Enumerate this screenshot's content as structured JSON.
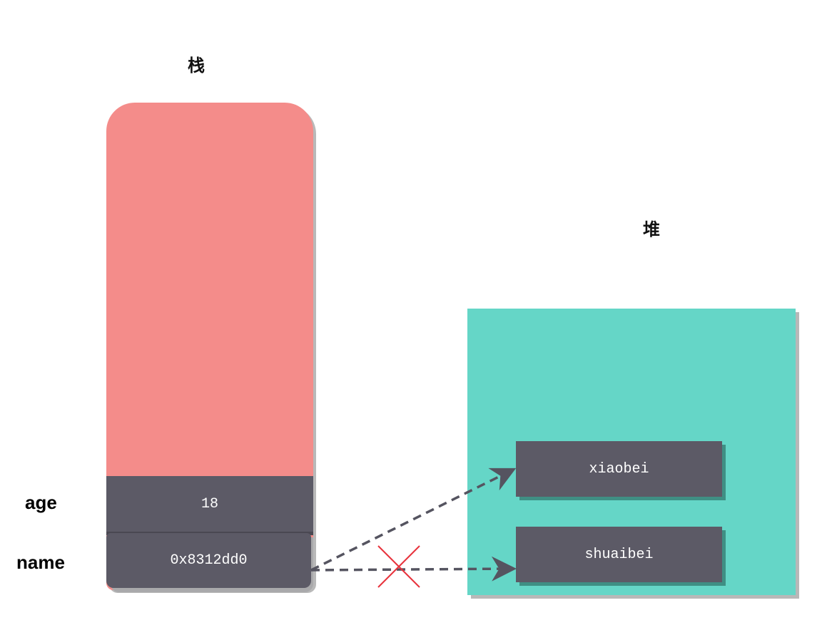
{
  "stack": {
    "title": "栈",
    "color": "#f48c8a",
    "cells": {
      "age": {
        "label": "age",
        "value": "18"
      },
      "name": {
        "label": "name",
        "value": "0x8312dd0"
      }
    }
  },
  "heap": {
    "title": "堆",
    "color": "#65d6c7",
    "cells": {
      "xiaobei": {
        "value": "xiaobei"
      },
      "shuaibei": {
        "value": "shuaibei"
      }
    }
  },
  "cell_color": "#5c5a66",
  "arrows": [
    {
      "from": "name",
      "to": "xiaobei",
      "style": "dashed",
      "status": "active"
    },
    {
      "from": "name",
      "to": "shuaibei",
      "style": "dashed",
      "status": "removed"
    }
  ],
  "cross_mark_color": "#e8323c"
}
